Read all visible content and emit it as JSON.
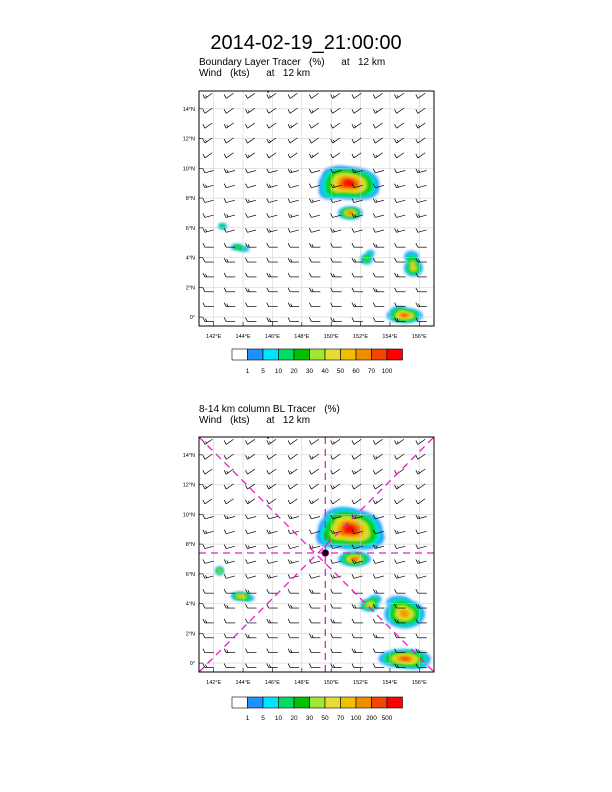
{
  "title": "2014-02-19_21:00:00",
  "panels": [
    {
      "title_line1": "Boundary Layer Tracer   (%)      at   12 km",
      "title_line2": "Wind   (kts)      at   12 km"
    },
    {
      "title_line1": "8-14 km column BL Tracer   (%)",
      "title_line2": "Wind   (kts)      at   12 km"
    }
  ],
  "chart_data": [
    {
      "type": "heatmap",
      "title": "Boundary Layer Tracer (%) at 12 km",
      "overlay": "Wind (kts) at 12 km, wind barbs",
      "x_ticks": [
        "142°E",
        "144°E",
        "146°E",
        "148°E",
        "150°E",
        "152°E",
        "154°E",
        "156°E"
      ],
      "y_ticks": [
        "0°",
        "2°N",
        "4°N",
        "6°N",
        "8°N",
        "10°N",
        "12°N",
        "14°N"
      ],
      "xlim": [
        141.0,
        157.0
      ],
      "ylim": [
        -0.6,
        15.2
      ],
      "grid": true,
      "colorbar": {
        "levels": [
          "1",
          "5",
          "10",
          "20",
          "30",
          "40",
          "50",
          "60",
          "70",
          "100"
        ],
        "colors": [
          "#ffffff",
          "#1e90ff",
          "#00e5ff",
          "#00dd66",
          "#00c000",
          "#a0e632",
          "#e6dc32",
          "#f0c000",
          "#f08c00",
          "#f04600",
          "#ff0000"
        ]
      },
      "tracer_patches": [
        {
          "lon": 151.2,
          "lat": 9.0,
          "peak_level": 100
        },
        {
          "lon": 151.3,
          "lat": 7.0,
          "peak_level": 70
        },
        {
          "lon": 142.6,
          "lat": 6.1,
          "peak_level": 30
        },
        {
          "lon": 143.6,
          "lat": 4.7,
          "peak_level": 30
        },
        {
          "lon": 152.4,
          "lat": 3.9,
          "peak_level": 30
        },
        {
          "lon": 155.6,
          "lat": 3.3,
          "peak_level": 50
        },
        {
          "lon": 155.0,
          "lat": 0.1,
          "peak_level": 70
        }
      ]
    },
    {
      "type": "heatmap",
      "title": "8-14 km column BL Tracer (%)",
      "overlay": "Wind (kts) at 12 km, wind barbs",
      "x_ticks": [
        "142°E",
        "144°E",
        "146°E",
        "148°E",
        "150°E",
        "152°E",
        "154°E",
        "156°E"
      ],
      "y_ticks": [
        "0°",
        "2°N",
        "4°N",
        "6°N",
        "8°N",
        "10°N",
        "12°N",
        "14°N"
      ],
      "xlim": [
        141.0,
        157.0
      ],
      "ylim": [
        -0.6,
        15.2
      ],
      "grid": true,
      "reference_point": {
        "lon": 149.6,
        "lat": 7.4
      },
      "colorbar": {
        "levels": [
          "1",
          "5",
          "10",
          "20",
          "30",
          "50",
          "70",
          "100",
          "200",
          "500"
        ],
        "colors": [
          "#ffffff",
          "#1e90ff",
          "#00e5ff",
          "#00dd66",
          "#00c000",
          "#a0e632",
          "#e6dc32",
          "#f0c000",
          "#f08c00",
          "#f04600",
          "#ff0000"
        ]
      },
      "tracer_patches": [
        {
          "lon": 151.3,
          "lat": 9.0,
          "peak_level": 500
        },
        {
          "lon": 151.6,
          "lat": 7.0,
          "peak_level": 200
        },
        {
          "lon": 142.4,
          "lat": 6.2,
          "peak_level": 70
        },
        {
          "lon": 143.8,
          "lat": 4.5,
          "peak_level": 100
        },
        {
          "lon": 152.6,
          "lat": 3.9,
          "peak_level": 70
        },
        {
          "lon": 155.0,
          "lat": 3.3,
          "peak_level": 100
        },
        {
          "lon": 155.0,
          "lat": 0.3,
          "peak_level": 200
        }
      ]
    }
  ]
}
